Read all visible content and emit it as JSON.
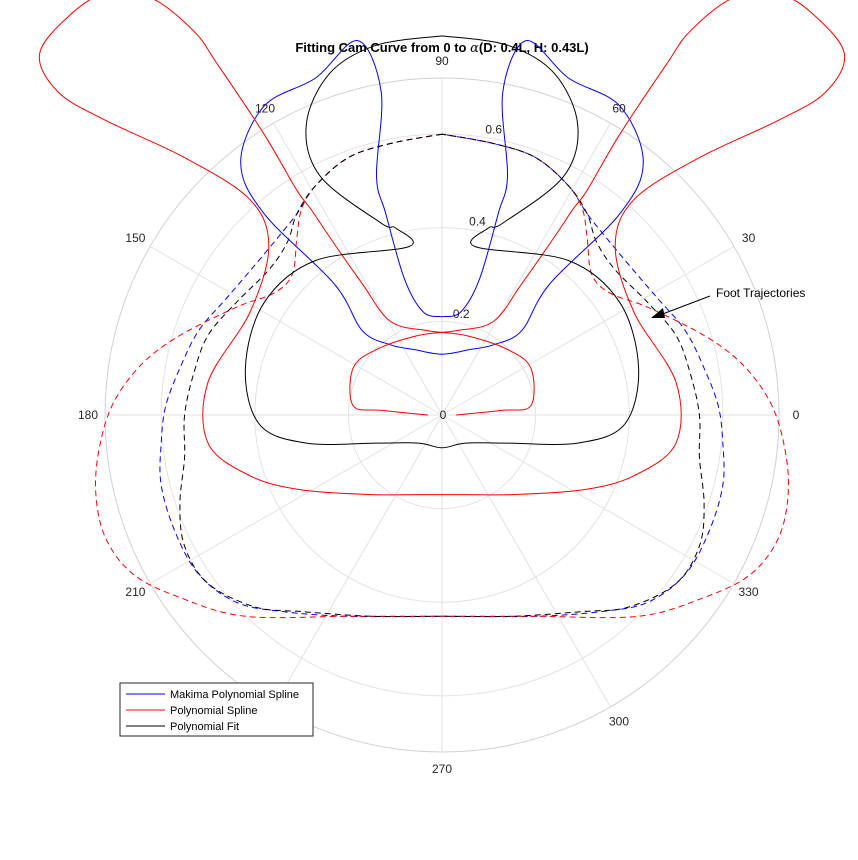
{
  "chart_data": {
    "type": "polar-line",
    "title": {
      "prefix": "Fitting Cam Curve from 0 to ",
      "symbol": "α",
      "suffix": "(D: 0.4L, H: 0.43L)"
    },
    "theta_ticks": [
      "0",
      "30",
      "60",
      "90",
      "120",
      "150",
      "180",
      "210",
      "240",
      "270",
      "300",
      "330"
    ],
    "r_ticks": [
      "0",
      "0.2",
      "0.4",
      "0.6"
    ],
    "r_lim": [
      0,
      0.72
    ],
    "grid": true,
    "legend_position": "bottom-left",
    "annotation": {
      "text": "Foot Trajectories"
    },
    "series": [
      {
        "name": "Makima Polynomial Spline",
        "color": "#0000ff"
      },
      {
        "name": "Polynomial Spline",
        "color": "#ff0000"
      },
      {
        "name": "Polynomial Fit",
        "color": "#000000"
      }
    ],
    "curves": [
      {
        "series": "Makima Polynomial Spline",
        "style": "solid",
        "points": [
          [
            0.0,
            0.21
          ],
          [
            -0.04,
            0.22
          ],
          [
            -0.08,
            0.29
          ],
          [
            -0.12,
            0.43
          ],
          [
            -0.14,
            0.51
          ],
          [
            -0.13,
            0.69
          ],
          [
            -0.18,
            0.8
          ],
          [
            -0.27,
            0.72
          ],
          [
            -0.38,
            0.66
          ],
          [
            -0.43,
            0.54
          ],
          [
            -0.38,
            0.43
          ],
          [
            -0.23,
            0.28
          ],
          [
            -0.17,
            0.18
          ],
          [
            -0.11,
            0.15
          ],
          [
            -0.06,
            0.14
          ],
          [
            0.0,
            0.13
          ],
          [
            0.06,
            0.14
          ],
          [
            0.11,
            0.15
          ],
          [
            0.17,
            0.18
          ],
          [
            0.23,
            0.28
          ],
          [
            0.38,
            0.43
          ],
          [
            0.43,
            0.54
          ],
          [
            0.38,
            0.66
          ],
          [
            0.27,
            0.72
          ],
          [
            0.18,
            0.8
          ],
          [
            0.13,
            0.69
          ],
          [
            0.14,
            0.51
          ],
          [
            0.12,
            0.43
          ],
          [
            0.08,
            0.29
          ],
          [
            0.04,
            0.22
          ],
          [
            0.0,
            0.21
          ]
        ]
      },
      {
        "series": "Polynomial Spline",
        "style": "solid",
        "points": [
          [
            -0.03,
            0.0
          ],
          [
            -0.13,
            0.01
          ],
          [
            -0.19,
            0.02
          ],
          [
            -0.19,
            0.1
          ],
          [
            -0.14,
            0.14
          ],
          [
            -0.05,
            0.17
          ],
          [
            0.03,
            0.18
          ],
          [
            0.11,
            0.2
          ],
          [
            0.17,
            0.28
          ],
          [
            0.24,
            0.38
          ],
          [
            0.28,
            0.44
          ],
          [
            0.31,
            0.48
          ],
          [
            0.38,
            0.6
          ],
          [
            0.48,
            0.75
          ],
          [
            0.53,
            0.82
          ],
          [
            0.62,
            0.89
          ],
          [
            0.72,
            0.9
          ],
          [
            0.8,
            0.85
          ],
          [
            0.86,
            0.77
          ],
          [
            0.82,
            0.69
          ],
          [
            0.72,
            0.63
          ],
          [
            0.55,
            0.55
          ],
          [
            0.41,
            0.46
          ],
          [
            0.37,
            0.36
          ],
          [
            0.41,
            0.22
          ],
          [
            0.5,
            0.07
          ],
          [
            0.5,
            -0.06
          ],
          [
            0.41,
            -0.13
          ],
          [
            0.3,
            -0.16
          ],
          [
            0.15,
            -0.17
          ],
          [
            0.05,
            -0.17
          ],
          [
            -0.05,
            -0.17
          ],
          [
            -0.15,
            -0.17
          ],
          [
            -0.3,
            -0.16
          ],
          [
            -0.41,
            -0.13
          ],
          [
            -0.5,
            -0.06
          ],
          [
            -0.5,
            0.07
          ],
          [
            -0.41,
            0.22
          ],
          [
            -0.37,
            0.36
          ],
          [
            -0.41,
            0.46
          ],
          [
            -0.55,
            0.55
          ],
          [
            -0.72,
            0.63
          ],
          [
            -0.82,
            0.69
          ],
          [
            -0.86,
            0.77
          ],
          [
            -0.8,
            0.85
          ],
          [
            -0.72,
            0.9
          ],
          [
            -0.62,
            0.89
          ],
          [
            -0.53,
            0.82
          ],
          [
            -0.48,
            0.75
          ],
          [
            -0.38,
            0.6
          ],
          [
            -0.31,
            0.48
          ],
          [
            -0.28,
            0.44
          ],
          [
            -0.24,
            0.38
          ],
          [
            -0.17,
            0.28
          ],
          [
            -0.11,
            0.2
          ],
          [
            -0.03,
            0.18
          ],
          [
            0.05,
            0.17
          ],
          [
            0.14,
            0.14
          ],
          [
            0.19,
            0.1
          ],
          [
            0.19,
            0.02
          ],
          [
            0.13,
            0.01
          ],
          [
            0.03,
            0.0
          ]
        ]
      },
      {
        "series": "Polynomial Fit",
        "style": "solid",
        "points": [
          [
            0.0,
            0.81
          ],
          [
            -0.14,
            0.79
          ],
          [
            -0.24,
            0.73
          ],
          [
            -0.29,
            0.62
          ],
          [
            -0.26,
            0.51
          ],
          [
            -0.13,
            0.41
          ],
          [
            -0.1,
            0.4
          ],
          [
            -0.07,
            0.36
          ],
          [
            -0.27,
            0.33
          ],
          [
            -0.38,
            0.24
          ],
          [
            -0.42,
            0.1
          ],
          [
            -0.39,
            -0.02
          ],
          [
            -0.29,
            -0.06
          ],
          [
            -0.14,
            -0.06
          ],
          [
            -0.05,
            -0.06
          ],
          [
            0.0,
            -0.07
          ],
          [
            0.05,
            -0.06
          ],
          [
            0.14,
            -0.06
          ],
          [
            0.29,
            -0.06
          ],
          [
            0.39,
            -0.02
          ],
          [
            0.42,
            0.1
          ],
          [
            0.38,
            0.24
          ],
          [
            0.27,
            0.33
          ],
          [
            0.07,
            0.36
          ],
          [
            0.1,
            0.4
          ],
          [
            0.13,
            0.41
          ],
          [
            0.26,
            0.51
          ],
          [
            0.29,
            0.62
          ],
          [
            0.24,
            0.73
          ],
          [
            0.14,
            0.79
          ],
          [
            0.0,
            0.81
          ]
        ]
      },
      {
        "series": "Makima Polynomial Spline",
        "style": "dashed",
        "points": [
          [
            0.0,
            0.6
          ],
          [
            -0.11,
            0.58
          ],
          [
            -0.2,
            0.55
          ],
          [
            -0.27,
            0.49
          ],
          [
            -0.31,
            0.43
          ],
          [
            -0.35,
            0.38
          ],
          [
            -0.4,
            0.32
          ],
          [
            -0.46,
            0.25
          ],
          [
            -0.52,
            0.18
          ],
          [
            -0.56,
            0.1
          ],
          [
            -0.59,
            0.02
          ],
          [
            -0.6,
            -0.06
          ],
          [
            -0.6,
            -0.15
          ],
          [
            -0.57,
            -0.25
          ],
          [
            -0.52,
            -0.34
          ],
          [
            -0.44,
            -0.4
          ],
          [
            -0.34,
            -0.42
          ],
          [
            -0.2,
            -0.43
          ],
          [
            0.0,
            -0.43
          ],
          [
            0.2,
            -0.43
          ],
          [
            0.34,
            -0.42
          ],
          [
            0.44,
            -0.4
          ],
          [
            0.52,
            -0.34
          ],
          [
            0.57,
            -0.25
          ],
          [
            0.6,
            -0.15
          ],
          [
            0.6,
            -0.06
          ],
          [
            0.59,
            0.02
          ],
          [
            0.56,
            0.1
          ],
          [
            0.52,
            0.18
          ],
          [
            0.46,
            0.25
          ],
          [
            0.4,
            0.32
          ],
          [
            0.35,
            0.38
          ],
          [
            0.31,
            0.43
          ],
          [
            0.27,
            0.49
          ],
          [
            0.2,
            0.55
          ],
          [
            0.11,
            0.58
          ],
          [
            0.0,
            0.6
          ]
        ]
      },
      {
        "series": "Polynomial Spline",
        "style": "dashed",
        "points": [
          [
            0.0,
            0.6
          ],
          [
            -0.11,
            0.58
          ],
          [
            -0.2,
            0.55
          ],
          [
            -0.27,
            0.49
          ],
          [
            -0.3,
            0.44
          ],
          [
            -0.31,
            0.38
          ],
          [
            -0.32,
            0.3
          ],
          [
            -0.36,
            0.26
          ],
          [
            -0.44,
            0.23
          ],
          [
            -0.56,
            0.17
          ],
          [
            -0.64,
            0.11
          ],
          [
            -0.7,
            0.03
          ],
          [
            -0.73,
            -0.06
          ],
          [
            -0.74,
            -0.16
          ],
          [
            -0.72,
            -0.26
          ],
          [
            -0.66,
            -0.34
          ],
          [
            -0.56,
            -0.39
          ],
          [
            -0.42,
            -0.43
          ],
          [
            -0.2,
            -0.43
          ],
          [
            0.0,
            -0.43
          ],
          [
            0.2,
            -0.43
          ],
          [
            0.42,
            -0.43
          ],
          [
            0.56,
            -0.39
          ],
          [
            0.66,
            -0.34
          ],
          [
            0.72,
            -0.26
          ],
          [
            0.74,
            -0.16
          ],
          [
            0.73,
            -0.06
          ],
          [
            0.7,
            0.03
          ],
          [
            0.64,
            0.11
          ],
          [
            0.56,
            0.17
          ],
          [
            0.44,
            0.23
          ],
          [
            0.36,
            0.26
          ],
          [
            0.32,
            0.3
          ],
          [
            0.31,
            0.38
          ],
          [
            0.3,
            0.44
          ],
          [
            0.27,
            0.49
          ],
          [
            0.2,
            0.55
          ],
          [
            0.11,
            0.58
          ],
          [
            0.0,
            0.6
          ]
        ]
      },
      {
        "series": "Polynomial Fit",
        "style": "dashed",
        "points": [
          [
            0.0,
            0.6
          ],
          [
            -0.11,
            0.58
          ],
          [
            -0.2,
            0.55
          ],
          [
            -0.27,
            0.49
          ],
          [
            -0.31,
            0.43
          ],
          [
            -0.33,
            0.37
          ],
          [
            -0.37,
            0.31
          ],
          [
            -0.44,
            0.24
          ],
          [
            -0.5,
            0.17
          ],
          [
            -0.53,
            0.09
          ],
          [
            -0.55,
            0.0
          ],
          [
            -0.55,
            -0.09
          ],
          [
            -0.56,
            -0.19
          ],
          [
            -0.55,
            -0.28
          ],
          [
            -0.5,
            -0.36
          ],
          [
            -0.4,
            -0.41
          ],
          [
            -0.3,
            -0.42
          ],
          [
            -0.15,
            -0.43
          ],
          [
            0.0,
            -0.43
          ],
          [
            0.15,
            -0.43
          ],
          [
            0.3,
            -0.42
          ],
          [
            0.4,
            -0.41
          ],
          [
            0.5,
            -0.36
          ],
          [
            0.55,
            -0.28
          ],
          [
            0.56,
            -0.19
          ],
          [
            0.55,
            -0.09
          ],
          [
            0.55,
            0.0
          ],
          [
            0.53,
            0.09
          ],
          [
            0.5,
            0.17
          ],
          [
            0.44,
            0.24
          ],
          [
            0.37,
            0.31
          ],
          [
            0.33,
            0.37
          ],
          [
            0.31,
            0.43
          ],
          [
            0.27,
            0.49
          ],
          [
            0.2,
            0.55
          ],
          [
            0.11,
            0.58
          ],
          [
            0.0,
            0.6
          ]
        ]
      }
    ]
  }
}
